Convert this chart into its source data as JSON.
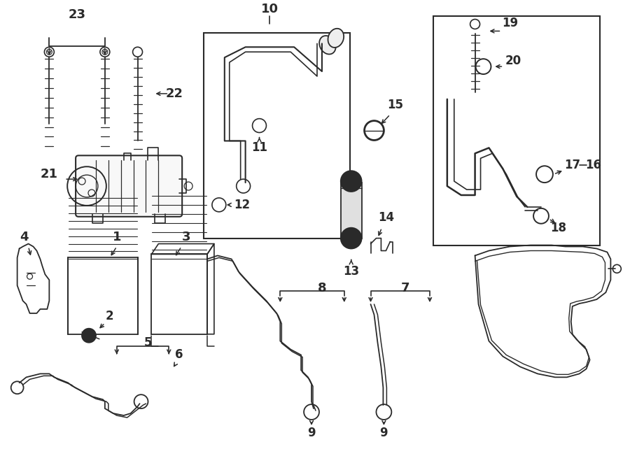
{
  "bg_color": "#ffffff",
  "lc": "#2a2a2a",
  "fig_w": 9.0,
  "fig_h": 6.62,
  "dpi": 100
}
